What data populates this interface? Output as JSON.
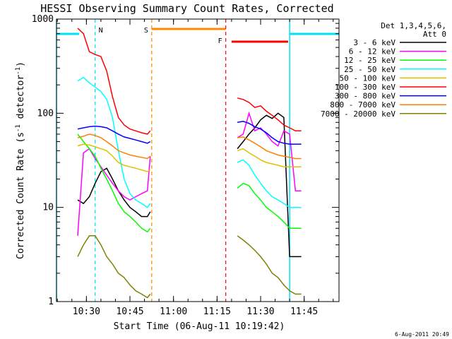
{
  "chart_data": {
    "type": "line",
    "title": "HESSI Observing Summary Count Rates, Corrected",
    "xlabel": "Start Time (06-Aug-11 10:19:42)",
    "ylabel_main": "Corrected Count Rate (s",
    "ylabel_sup1": "-1",
    "ylabel_mid": " detector",
    "ylabel_sup2": "-1",
    "ylabel_end": ")",
    "y_scale": "log",
    "ylim": [
      1,
      1000
    ],
    "xlim": [
      "10:19:42",
      "11:57:00"
    ],
    "x_ticks": [
      "10:30",
      "10:45",
      "11:00",
      "11:15",
      "11:30",
      "11:45"
    ],
    "y_ticks": [
      "1",
      "10",
      "100",
      "1000"
    ],
    "timestamp": "6-Aug-2011 20:49",
    "legend": {
      "header1": "Det 1,3,4,5,6,",
      "header2": "Att 0",
      "placement": "right"
    },
    "markers": [
      {
        "label": "N",
        "time": "10:33:00",
        "color": "#00e0ff"
      },
      {
        "label": "S",
        "time": "10:52:30",
        "color": "#ff8800"
      },
      {
        "label": "F",
        "time": "11:18:00",
        "color": "#ff0000"
      }
    ],
    "segments": [
      {
        "label": "night",
        "start": "10:19:42",
        "end": "10:27:30",
        "color": "#00e0ff"
      },
      {
        "label": "saa",
        "start": "10:52:30",
        "end": "11:18:00",
        "color": "#ff8800"
      },
      {
        "label": "flare",
        "start": "11:20:00",
        "end": "11:39:30",
        "color": "#ff0000"
      },
      {
        "label": "night",
        "start": "11:40:00",
        "end": "11:57:00",
        "color": "#00e0ff"
      }
    ],
    "series": [
      {
        "name": "3 - 6 keV",
        "color": "#000000",
        "x": [
          "10:27:00",
          "10:29:00",
          "10:31:00",
          "10:33:00",
          "10:35:00",
          "10:37:00",
          "10:39:00",
          "10:41:00",
          "10:43:00",
          "10:45:00",
          "10:47:00",
          "10:49:00",
          "10:51:00",
          "10:52:00",
          "11:22:00",
          "11:24:00",
          "11:26:00",
          "11:28:00",
          "11:30:00",
          "11:32:00",
          "11:34:00",
          "11:36:00",
          "11:38:00",
          "11:40:00",
          "11:42:00",
          "11:44:00"
        ],
        "y": [
          12,
          11,
          13,
          18,
          24,
          26,
          20,
          15,
          12,
          10,
          9,
          8,
          8,
          9,
          42,
          50,
          60,
          70,
          85,
          95,
          88,
          100,
          90,
          3,
          3,
          3
        ]
      },
      {
        "name": "6 - 12 keV",
        "color": "#ff00ff",
        "x": [
          "10:27:00",
          "10:29:00",
          "10:31:00",
          "10:33:00",
          "10:35:00",
          "10:37:00",
          "10:39:00",
          "10:41:00",
          "10:43:00",
          "10:45:00",
          "10:47:00",
          "10:49:00",
          "10:51:00",
          "10:52:00",
          "11:22:00",
          "11:24:00",
          "11:26:00",
          "11:28:00",
          "11:30:00",
          "11:32:00",
          "11:34:00",
          "11:36:00",
          "11:38:00",
          "11:40:00",
          "11:42:00",
          "11:44:00"
        ],
        "y": [
          5,
          38,
          42,
          33,
          27,
          22,
          18,
          15,
          13,
          12,
          13,
          14,
          15,
          35,
          55,
          60,
          100,
          65,
          70,
          60,
          50,
          45,
          65,
          60,
          15,
          15
        ]
      },
      {
        "name": "12 - 25 keV",
        "color": "#00ff00",
        "x": [
          "10:27:00",
          "10:29:00",
          "10:31:00",
          "10:33:00",
          "10:35:00",
          "10:37:00",
          "10:39:00",
          "10:41:00",
          "10:43:00",
          "10:45:00",
          "10:47:00",
          "10:49:00",
          "10:51:00",
          "10:52:00",
          "11:22:00",
          "11:24:00",
          "11:26:00",
          "11:28:00",
          "11:30:00",
          "11:32:00",
          "11:34:00",
          "11:36:00",
          "11:38:00",
          "11:40:00",
          "11:42:00",
          "11:44:00"
        ],
        "y": [
          60,
          50,
          42,
          35,
          26,
          20,
          15,
          11,
          9,
          8,
          7,
          6,
          5.5,
          6,
          16,
          18,
          17,
          14,
          12,
          10,
          9,
          8,
          7,
          6,
          6,
          6
        ]
      },
      {
        "name": "25 - 50 keV",
        "color": "#00ffff",
        "x": [
          "10:27:00",
          "10:29:00",
          "10:31:00",
          "10:33:00",
          "10:35:00",
          "10:37:00",
          "10:39:00",
          "10:41:00",
          "10:43:00",
          "10:45:00",
          "10:47:00",
          "10:49:00",
          "10:51:00",
          "10:52:00",
          "11:22:00",
          "11:24:00",
          "11:26:00",
          "11:28:00",
          "11:30:00",
          "11:32:00",
          "11:34:00",
          "11:36:00",
          "11:38:00",
          "11:40:00",
          "11:42:00",
          "11:44:00"
        ],
        "y": [
          220,
          240,
          210,
          190,
          170,
          140,
          90,
          40,
          20,
          14,
          12,
          11,
          10,
          11,
          30,
          32,
          28,
          22,
          18,
          15,
          13,
          12,
          11,
          10,
          10,
          10
        ]
      },
      {
        "name": "50 - 100 keV",
        "color": "#e0c000",
        "x": [
          "10:27:00",
          "10:29:00",
          "10:31:00",
          "10:33:00",
          "10:35:00",
          "10:37:00",
          "10:39:00",
          "10:41:00",
          "10:43:00",
          "10:45:00",
          "10:47:00",
          "10:49:00",
          "10:51:00",
          "10:52:00",
          "11:22:00",
          "11:24:00",
          "11:26:00",
          "11:28:00",
          "11:30:00",
          "11:32:00",
          "11:34:00",
          "11:36:00",
          "11:38:00",
          "11:40:00",
          "11:42:00",
          "11:44:00"
        ],
        "y": [
          45,
          47,
          46,
          44,
          42,
          40,
          35,
          30,
          28,
          27,
          26,
          25,
          24,
          25,
          40,
          42,
          38,
          35,
          32,
          30,
          29,
          28,
          27,
          27,
          27,
          27
        ]
      },
      {
        "name": "100 - 300 keV",
        "color": "#ff0000",
        "x": [
          "10:27:00",
          "10:29:00",
          "10:31:00",
          "10:33:00",
          "10:35:00",
          "10:37:00",
          "10:39:00",
          "10:41:00",
          "10:43:00",
          "10:45:00",
          "10:47:00",
          "10:49:00",
          "10:51:00",
          "10:52:00",
          "11:22:00",
          "11:24:00",
          "11:26:00",
          "11:28:00",
          "11:30:00",
          "11:32:00",
          "11:34:00",
          "11:36:00",
          "11:38:00",
          "11:40:00",
          "11:42:00",
          "11:44:00"
        ],
        "y": [
          800,
          700,
          450,
          420,
          400,
          280,
          150,
          90,
          75,
          68,
          65,
          62,
          60,
          65,
          145,
          140,
          130,
          115,
          120,
          105,
          95,
          85,
          75,
          70,
          65,
          65
        ]
      },
      {
        "name": "300 - 800 keV",
        "color": "#0000ff",
        "x": [
          "10:27:00",
          "10:29:00",
          "10:31:00",
          "10:33:00",
          "10:35:00",
          "10:37:00",
          "10:39:00",
          "10:41:00",
          "10:43:00",
          "10:45:00",
          "10:47:00",
          "10:49:00",
          "10:51:00",
          "10:52:00",
          "11:22:00",
          "11:24:00",
          "11:26:00",
          "11:28:00",
          "11:30:00",
          "11:32:00",
          "11:34:00",
          "11:36:00",
          "11:38:00",
          "11:40:00",
          "11:42:00",
          "11:44:00"
        ],
        "y": [
          68,
          70,
          72,
          73,
          72,
          70,
          65,
          60,
          56,
          54,
          52,
          50,
          48,
          50,
          80,
          82,
          78,
          72,
          68,
          62,
          55,
          50,
          48,
          47,
          47,
          47
        ]
      },
      {
        "name": "800 - 7000 keV",
        "color": "#ff8000",
        "x": [
          "10:27:00",
          "10:29:00",
          "10:31:00",
          "10:33:00",
          "10:35:00",
          "10:37:00",
          "10:39:00",
          "10:41:00",
          "10:43:00",
          "10:45:00",
          "10:47:00",
          "10:49:00",
          "10:51:00",
          "10:52:00",
          "11:22:00",
          "11:24:00",
          "11:26:00",
          "11:28:00",
          "11:30:00",
          "11:32:00",
          "11:34:00",
          "11:36:00",
          "11:38:00",
          "11:40:00",
          "11:42:00",
          "11:44:00"
        ],
        "y": [
          55,
          57,
          60,
          58,
          55,
          50,
          45,
          40,
          38,
          36,
          35,
          34,
          33,
          35,
          55,
          56,
          52,
          48,
          44,
          40,
          38,
          36,
          35,
          34,
          33,
          33
        ]
      },
      {
        "name": "7000 - 20000 keV",
        "color": "#808000",
        "x": [
          "10:27:00",
          "10:29:00",
          "10:31:00",
          "10:33:00",
          "10:35:00",
          "10:37:00",
          "10:39:00",
          "10:41:00",
          "10:43:00",
          "10:45:00",
          "10:47:00",
          "10:49:00",
          "10:51:00",
          "10:52:00",
          "11:22:00",
          "11:24:00",
          "11:26:00",
          "11:28:00",
          "11:30:00",
          "11:32:00",
          "11:34:00",
          "11:36:00",
          "11:38:00",
          "11:40:00",
          "11:42:00",
          "11:44:00"
        ],
        "y": [
          3,
          4,
          5,
          5,
          4,
          3,
          2.5,
          2,
          1.8,
          1.5,
          1.3,
          1.2,
          1.1,
          1.2,
          5,
          4.5,
          4,
          3.5,
          3,
          2.5,
          2,
          1.8,
          1.5,
          1.3,
          1.2,
          1.2
        ]
      }
    ]
  }
}
